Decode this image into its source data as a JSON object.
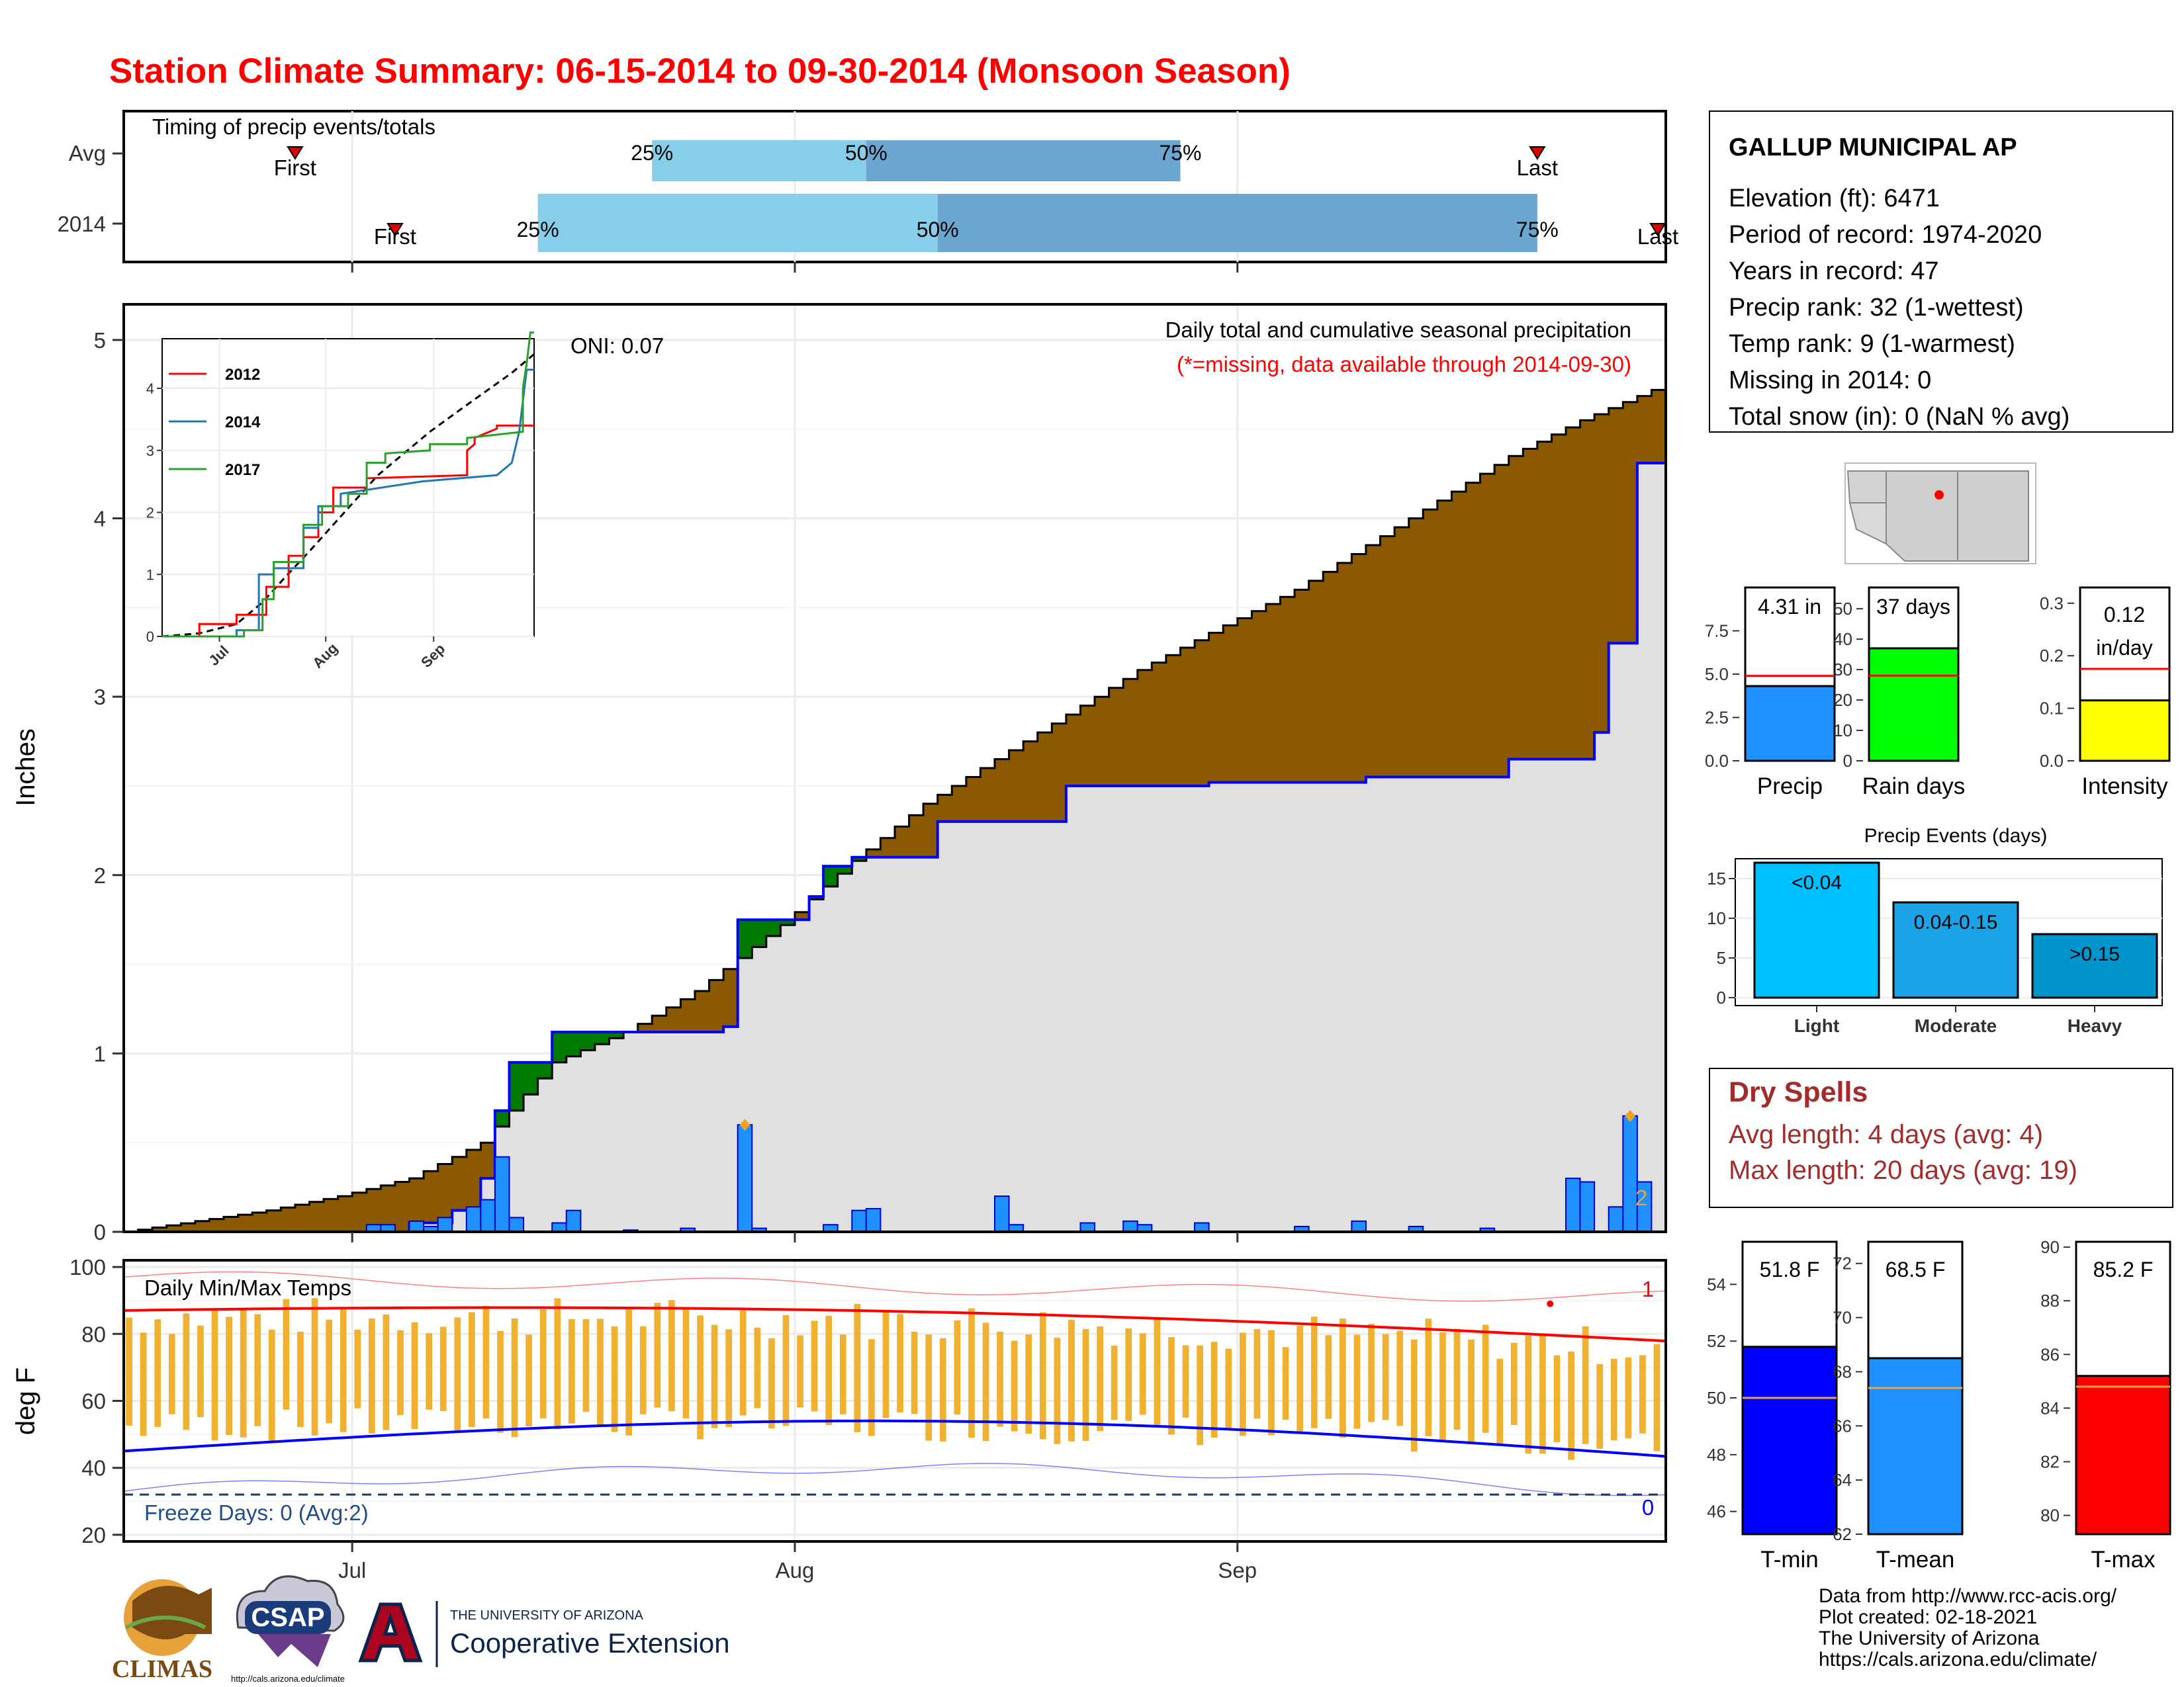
{
  "title": "Station Climate Summary: 06-15-2014 to 09-30-2014 (Monsoon Season)",
  "colors": {
    "title": "#ff0000",
    "drySpell": "#a52a2a",
    "precip": "#1e90ff",
    "raindays": "#00ff00",
    "intensity": "#ffff00",
    "tmin": "#0000ff",
    "tmean": "#1e90ff",
    "tmax": "#ff0000",
    "avgLine": "#e8a33a",
    "cumBrown": "#8b5a00",
    "cumGreen": "#007a00",
    "cumGray": "#e0e0e0",
    "timingLight": "#87ceeb",
    "timingDark": "#6aa6cf",
    "eventLight": "#00bfff",
    "eventModerate": "#1ca3e6",
    "eventHeavy": "#0095cc"
  },
  "station": {
    "name": "GALLUP MUNICIPAL AP",
    "lines": [
      "Elevation (ft): 6471",
      "Period of record: 1974-2020",
      "Years in record: 47",
      "Precip rank: 32 (1-wettest)",
      "Temp rank: 9 (1-warmest)",
      "Missing in 2014: 0",
      "Total snow (in): 0 (NaN % avg)"
    ]
  },
  "timing": {
    "label": "Timing of precip events/totals",
    "rows": [
      {
        "name": "Avg",
        "first_label": "First",
        "last_label": "Last",
        "q25": "25%",
        "q50": "50%",
        "q75": "75%",
        "first": "2014-06-27",
        "q25_date": "2014-07-22",
        "q50_date": "2014-08-06",
        "q75_date": "2014-08-28",
        "last": "2014-09-22"
      },
      {
        "name": "2014",
        "first_label": "First",
        "last_label": "Last",
        "q25": "25%",
        "q50": "50%",
        "q75": "75%",
        "first": "2014-07-04",
        "q25_date": "2014-07-14",
        "q50_date": "2014-08-11",
        "q75_date": "2014-09-22",
        "last": "2014-10-02"
      }
    ]
  },
  "chart_data": [
    {
      "type": "area",
      "name": "cumulative-precip",
      "ylabel": "Inches",
      "ylim": [
        0,
        5
      ],
      "yticks": [
        0,
        1,
        2,
        3,
        4,
        5
      ],
      "xticks": [
        "Jul",
        "Aug",
        "Sep"
      ],
      "annotation_title": "Daily total and cumulative seasonal precipitation",
      "annotation_missing": "(*=missing, data available through 2014-09-30)",
      "oni": "ONI: 0.07",
      "corner_label": "2",
      "avg_cumulative": {
        "x": [
          "06-15",
          "06-20",
          "06-25",
          "06-30",
          "07-05",
          "07-10",
          "07-15",
          "07-20",
          "07-25",
          "07-31",
          "08-05",
          "08-10",
          "08-15",
          "08-20",
          "08-25",
          "08-31",
          "09-05",
          "09-10",
          "09-15",
          "09-20",
          "09-25",
          "09-30"
        ],
        "values": [
          0.0,
          0.06,
          0.12,
          0.2,
          0.3,
          0.5,
          0.95,
          1.12,
          1.35,
          1.72,
          2.08,
          2.4,
          2.65,
          2.9,
          3.15,
          3.4,
          3.6,
          3.85,
          4.1,
          4.35,
          4.55,
          4.72
        ]
      },
      "obs_cumulative": {
        "x": [
          "06-15",
          "07-02",
          "07-05",
          "07-08",
          "07-10",
          "07-11",
          "07-12",
          "07-15",
          "07-21",
          "07-27",
          "07-28",
          "08-02",
          "08-03",
          "08-05",
          "08-10",
          "08-11",
          "08-20",
          "08-30",
          "09-10",
          "09-20",
          "09-25",
          "09-26",
          "09-27",
          "09-29",
          "09-30"
        ],
        "values": [
          0.0,
          0.0,
          0.05,
          0.12,
          0.3,
          0.68,
          0.95,
          1.12,
          1.12,
          1.15,
          1.75,
          1.88,
          2.05,
          2.1,
          2.1,
          2.3,
          2.5,
          2.52,
          2.55,
          2.65,
          2.65,
          2.8,
          3.3,
          4.31,
          4.31
        ]
      },
      "daily_bars": {
        "x": [
          "07-02",
          "07-03",
          "07-05",
          "07-06",
          "07-07",
          "07-09",
          "07-10",
          "07-11",
          "07-12",
          "07-15",
          "07-16",
          "07-20",
          "07-24",
          "07-28",
          "07-29",
          "08-03",
          "08-05",
          "08-06",
          "08-15",
          "08-16",
          "08-21",
          "08-24",
          "08-25",
          "08-29",
          "09-05",
          "09-09",
          "09-13",
          "09-18",
          "09-24",
          "09-25",
          "09-27",
          "09-28",
          "09-29"
        ],
        "values": [
          0.04,
          0.04,
          0.06,
          0.03,
          0.08,
          0.14,
          0.18,
          0.42,
          0.08,
          0.05,
          0.12,
          0.01,
          0.02,
          0.6,
          0.02,
          0.04,
          0.12,
          0.13,
          0.2,
          0.04,
          0.05,
          0.06,
          0.04,
          0.05,
          0.03,
          0.06,
          0.03,
          0.02,
          0.3,
          0.28,
          0.14,
          0.65,
          0.28
        ]
      },
      "max_markers": [
        {
          "x": "07-28",
          "y": 0.6
        },
        {
          "x": "09-28",
          "y": 0.65
        }
      ]
    },
    {
      "type": "line",
      "name": "inset-cumulative",
      "series": [
        {
          "name": "2012",
          "color": "#ff0000"
        },
        {
          "name": "2014",
          "color": "#1f77b4"
        },
        {
          "name": "2017",
          "color": "#2ca02c"
        }
      ],
      "ylim": [
        0,
        4.8
      ],
      "yticks": [
        0,
        1,
        2,
        3,
        4
      ],
      "xticks": [
        "Jul",
        "Aug",
        "Sep"
      ]
    },
    {
      "type": "bar",
      "name": "daily-temps",
      "ylabel": "deg F",
      "label": "Daily Min/Max Temps",
      "freeze_label": "Freeze Days: 0 (Avg:2)",
      "ylim": [
        18,
        102
      ],
      "yticks": [
        20,
        40,
        60,
        80,
        100
      ],
      "xticks": [
        "Jul",
        "Aug",
        "Sep"
      ],
      "top_count": "1",
      "bottom_count": "0",
      "freeze_line": 32
    },
    {
      "type": "bar",
      "name": "precip-total",
      "xlabel": "Precip",
      "value_label": "4.31 in",
      "value": 4.31,
      "avg": 4.9,
      "ylim": [
        0,
        10
      ],
      "yticks": [
        "0.0",
        "2.5",
        "5.0",
        "7.5"
      ]
    },
    {
      "type": "bar",
      "name": "rain-days",
      "xlabel": "Rain days",
      "value_label": "37 days",
      "value": 37,
      "avg": 28,
      "ylim": [
        0,
        57
      ],
      "yticks": [
        "0",
        "10",
        "20",
        "30",
        "40",
        "50"
      ]
    },
    {
      "type": "bar",
      "name": "intensity",
      "xlabel": "Intensity",
      "value_label_1": "0.12",
      "value_label_2": "in/day",
      "value": 0.115,
      "avg": 0.175,
      "ylim": [
        0,
        0.33
      ],
      "yticks": [
        "0.0",
        "0.1",
        "0.2",
        "0.3"
      ]
    },
    {
      "type": "bar",
      "name": "precip-events",
      "title": "Precip Events (days)",
      "categories": [
        "Light",
        "Moderate",
        "Heavy"
      ],
      "labels": [
        "<0.04",
        "0.04-0.15",
        ">0.15"
      ],
      "values": [
        17,
        12,
        8
      ],
      "ylim": [
        0,
        17.5
      ],
      "yticks": [
        "0",
        "5",
        "10",
        "15"
      ]
    },
    {
      "type": "bar",
      "name": "t-min",
      "xlabel": "T-min",
      "value_label": "51.8 F",
      "value": 51.8,
      "avg": 50.0,
      "ylim": [
        45.2,
        55.5
      ],
      "yticks": [
        "46",
        "48",
        "50",
        "52",
        "54"
      ]
    },
    {
      "type": "bar",
      "name": "t-mean",
      "xlabel": "T-mean",
      "value_label": "68.5 F",
      "value": 68.5,
      "avg": 67.4,
      "ylim": [
        62.0,
        72.8
      ],
      "yticks": [
        "62",
        "64",
        "66",
        "68",
        "70",
        "72"
      ]
    },
    {
      "type": "bar",
      "name": "t-max",
      "xlabel": "T-max",
      "value_label": "85.2 F",
      "value": 85.2,
      "avg": 84.8,
      "ylim": [
        79.3,
        90.2
      ],
      "yticks": [
        "80",
        "82",
        "84",
        "86",
        "88",
        "90"
      ]
    }
  ],
  "dry_spells": {
    "title": "Dry Spells",
    "avg_length": "Avg length: 4 days (avg: 4)",
    "max_length": "Max length: 20 days (avg: 19)"
  },
  "footer": {
    "lines": [
      "Data from http://www.rcc-acis.org/",
      "Plot created: 02-18-2021",
      "The University of Arizona",
      "https://cals.arizona.edu/climate/"
    ]
  },
  "logos": {
    "climas": "CLIMAS",
    "csap": "CSAP",
    "csap_url": "http://cals.arizona.edu/climate",
    "ua_top": "THE UNIVERSITY OF ARIZONA",
    "ua_bottom": "Cooperative Extension"
  }
}
